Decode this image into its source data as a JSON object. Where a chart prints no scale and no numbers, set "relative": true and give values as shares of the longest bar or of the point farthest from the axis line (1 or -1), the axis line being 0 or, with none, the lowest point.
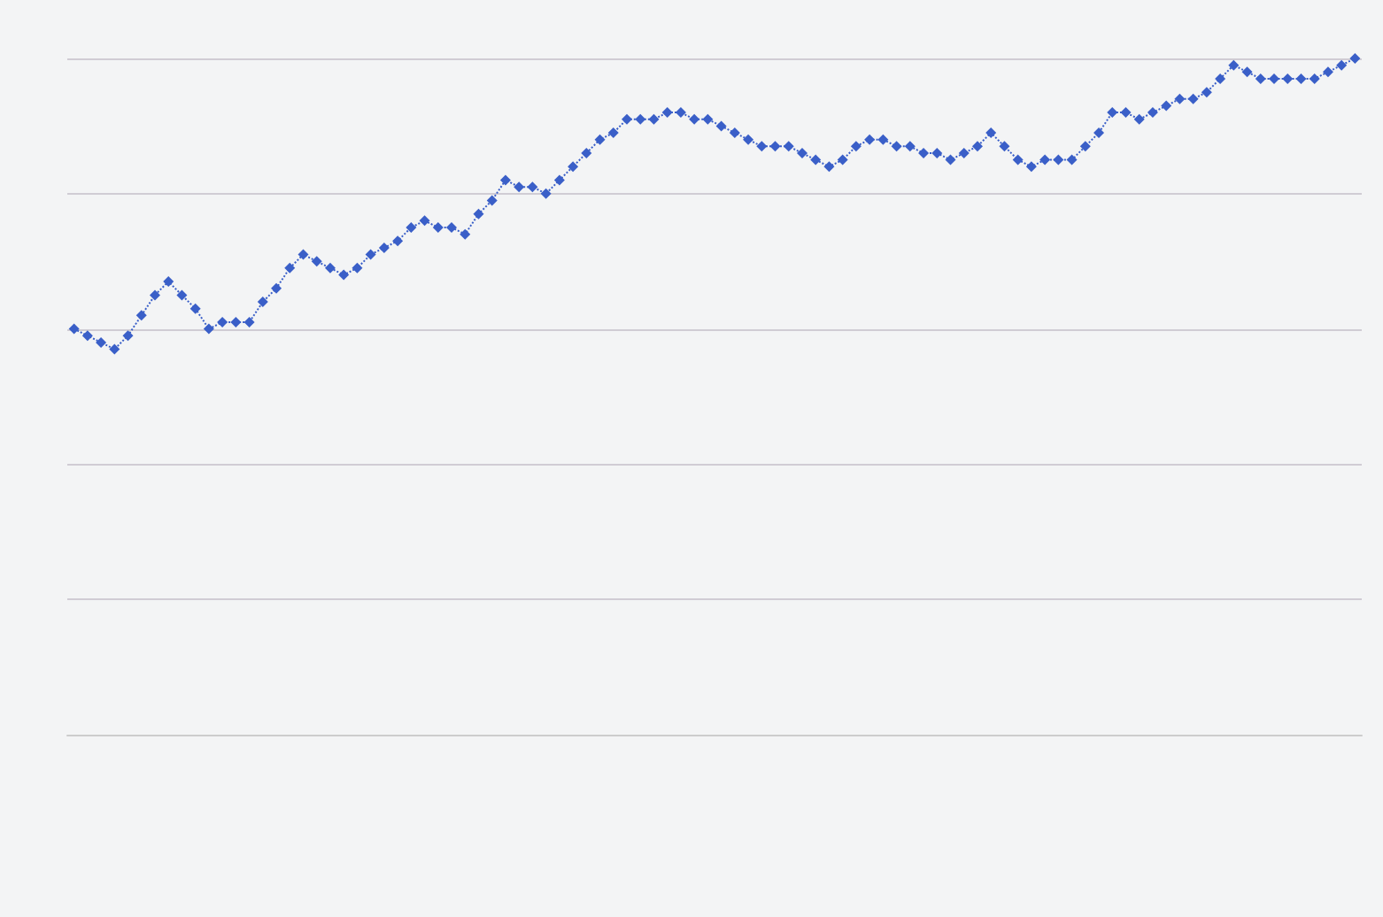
{
  "chart_data": {
    "type": "line",
    "relative": true,
    "grid": "y",
    "marker": "diamond",
    "line_style": "dotted",
    "categories": [
      null,
      null,
      null,
      null,
      null,
      null,
      null,
      null,
      null,
      null,
      null,
      null,
      null,
      null,
      null,
      null,
      null,
      null,
      null,
      null,
      null,
      null,
      null,
      null,
      null,
      null,
      null,
      null,
      null,
      null,
      null,
      null,
      null,
      null,
      null,
      null,
      null,
      null,
      null,
      null,
      null,
      null,
      null,
      null,
      null,
      null,
      null,
      null,
      null,
      null,
      null,
      null,
      null,
      null,
      null,
      null,
      null,
      null,
      null,
      null,
      null,
      null,
      null,
      null,
      null,
      null,
      null,
      null,
      null,
      null,
      null,
      null,
      null,
      null,
      null,
      null,
      null,
      null,
      null,
      null,
      null,
      null,
      null,
      null,
      null,
      null,
      null,
      null,
      null,
      null,
      null,
      null,
      null,
      null,
      null,
      null
    ],
    "series": [
      {
        "color": "#3a5fc8",
        "values": [
          0.6,
          0.59,
          0.58,
          0.57,
          0.59,
          0.62,
          0.65,
          0.67,
          0.65,
          0.63,
          0.6,
          0.61,
          0.61,
          0.61,
          0.64,
          0.66,
          0.69,
          0.71,
          0.7,
          0.69,
          0.68,
          0.69,
          0.71,
          0.72,
          0.73,
          0.75,
          0.76,
          0.75,
          0.75,
          0.74,
          0.77,
          0.79,
          0.82,
          0.81,
          0.81,
          0.8,
          0.82,
          0.84,
          0.86,
          0.88,
          0.89,
          0.91,
          0.91,
          0.91,
          0.92,
          0.92,
          0.91,
          0.91,
          0.9,
          0.89,
          0.88,
          0.87,
          0.87,
          0.87,
          0.86,
          0.85,
          0.84,
          0.85,
          0.87,
          0.88,
          0.88,
          0.87,
          0.87,
          0.86,
          0.86,
          0.85,
          0.86,
          0.87,
          0.89,
          0.87,
          0.85,
          0.84,
          0.85,
          0.85,
          0.85,
          0.87,
          0.89,
          0.92,
          0.92,
          0.91,
          0.92,
          0.93,
          0.94,
          0.94,
          0.95,
          0.97,
          0.99,
          0.98,
          0.97,
          0.97,
          0.97,
          0.97,
          0.97,
          0.98,
          0.99,
          1
        ]
      }
    ]
  }
}
